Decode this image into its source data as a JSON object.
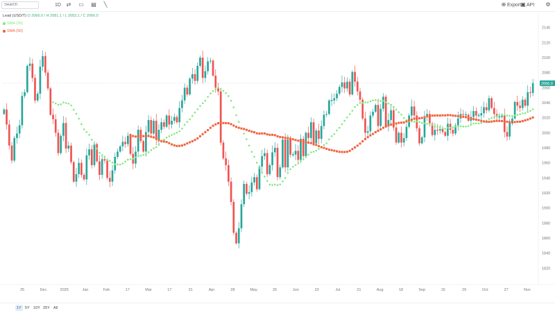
{
  "toolbar": {
    "search_placeholder": "Search",
    "interval": "1D",
    "export_label": "Export",
    "api_label": "API"
  },
  "legend": {
    "symbol": "Lead (USD/T)",
    "ohlc": "O 2066.0 / H 2081.1 / L 2053.1 / C 2066.0",
    "ma1_label": "SMA (20)",
    "ma2_label": "SMA (50)"
  },
  "colors": {
    "up": "#26a69a",
    "down": "#ef5350",
    "ma1": "#7fe87f",
    "ma2": "#f0603a",
    "last_price_bg": "#26a69a"
  },
  "ranges": [
    "1Y",
    "5Y",
    "10Y",
    "25Y",
    "All"
  ],
  "active_range": "1Y",
  "chart_data": {
    "type": "candlestick",
    "ylim": [
      1800,
      2160
    ],
    "yticks": [
      1820,
      1840,
      1860,
      1880,
      1900,
      1920,
      1940,
      1960,
      1980,
      2000,
      2020,
      2040,
      2060,
      2080,
      2100,
      2120,
      2140
    ],
    "last_price": "2066.0",
    "x_tick_labels": [
      "25",
      "Dec",
      "2025",
      "Jan",
      "Feb",
      "17",
      "Mar",
      "17",
      "31",
      "Apr",
      "28",
      "May",
      "26",
      "Jun",
      "23",
      "Jul",
      "21",
      "Aug",
      "18",
      "Sep",
      "15",
      "29",
      "Oct",
      "27",
      "Nov"
    ],
    "closes": [
      2031,
      2011,
      1983,
      1963,
      1993,
      1999,
      2010,
      2049,
      2054,
      2089,
      2092,
      2073,
      2043,
      2052,
      2088,
      2102,
      2080,
      2059,
      2024,
      2018,
      2000,
      1973,
      1996,
      2013,
      1979,
      1983,
      1961,
      1935,
      1945,
      1960,
      1944,
      1938,
      1970,
      1978,
      1957,
      1985,
      1962,
      1944,
      1965,
      1963,
      1940,
      1935,
      1950,
      1968,
      1975,
      1982,
      1988,
      1985,
      1996,
      1972,
      1959,
      1975,
      2004,
      1989,
      1975,
      2001,
      2017,
      1999,
      2016,
      1991,
      2004,
      2014,
      2008,
      2023,
      2011,
      2016,
      2021,
      2014,
      2033,
      2043,
      2060,
      2051,
      2072,
      2078,
      2069,
      2089,
      2100,
      2073,
      2082,
      2095,
      2096,
      2076,
      2060,
      2055,
      1987,
      1966,
      1957,
      1935,
      1908,
      1867,
      1853,
      1873,
      1905,
      1932,
      1919,
      1921,
      1934,
      1941,
      1925,
      1955,
      1969,
      1973,
      1945,
      1957,
      1974,
      1980,
      1941,
      1954,
      1991,
      1954,
      1991,
      1971,
      1971,
      1976,
      1964,
      1992,
      1969,
      2000,
      1993,
      2014,
      1986,
      2003,
      1992,
      2009,
      2024,
      2025,
      2043,
      2043,
      2046,
      2052,
      2061,
      2067,
      2059,
      2068,
      2051,
      2081,
      2068,
      2055,
      2044,
      2019,
      2000,
      2002,
      2023,
      2028,
      2037,
      2009,
      2032,
      2048,
      2009,
      2017,
      2030,
      2007,
      1987,
      2000,
      1987,
      1993,
      2008,
      2023,
      2035,
      2023,
      2006,
      1986,
      1994,
      2021,
      2025,
      2012,
      1997,
      2004,
      2003,
      2005,
      2001,
      1996,
      2012,
      2004,
      1999,
      2010,
      2019,
      2025,
      2024,
      2024,
      2016,
      2021,
      2029,
      2023,
      2023,
      2026,
      2034,
      2030,
      2046,
      2033,
      2025,
      2021,
      2021,
      2023,
      2001,
      1995,
      2013,
      2019,
      2041,
      2036,
      2033,
      2044,
      2036,
      2054,
      2053,
      2066
    ]
  }
}
